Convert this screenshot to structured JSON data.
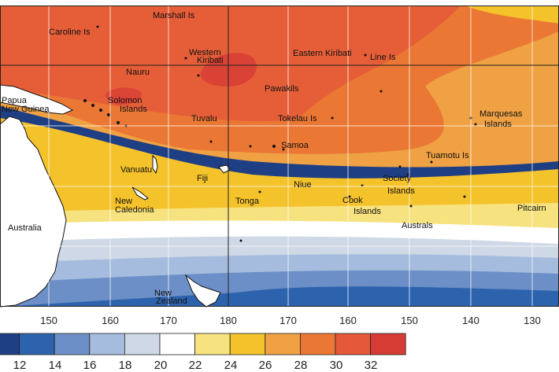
{
  "places": {
    "marshall": "Marshall Is",
    "caroline": "Caroline Is",
    "western": "Western",
    "kiribati": "Kiribati",
    "eastern_kiribati": "Eastern Kiribati",
    "line": "Line Is",
    "nauru": "Nauru",
    "papua": "Papua",
    "new_guinea": "New Guinea",
    "solomon": "Solomon",
    "islands_solomon": "Islands",
    "phoenix": "Pawakils",
    "tuvalu": "Tuvalu",
    "tokelau": "Tokelau Is",
    "marquesas": "Marquesas",
    "islands_marquesas": "Islands",
    "samoa": "Samoa",
    "tuamotu": "Tuamotu Is",
    "vanuatu": "Vanuatu",
    "fiji": "Fiji",
    "niue": "Niue",
    "society": "Society",
    "islands_society": "Islands",
    "new": "New",
    "caledonia": "Caledonia",
    "tonga": "Tonga",
    "cook": "Cook",
    "islands_cook": "Islands",
    "pitcairn": "Pitcairn",
    "australs": "Australs",
    "australia": "Australia",
    "new_z": "New",
    "zealand": "Zealand"
  },
  "axis": {
    "longitudes": [
      "150",
      "160",
      "170",
      "180",
      "170",
      "160",
      "150",
      "140",
      "130"
    ]
  },
  "colorbar": {
    "labels": [
      "12",
      "14",
      "16",
      "18",
      "20",
      "22",
      "24",
      "26",
      "28",
      "30",
      "32"
    ],
    "colors": [
      "#1f3f85",
      "#2d63ad",
      "#6b8fc6",
      "#a6bcde",
      "#cfd8e6",
      "#ffffff",
      "#f6e27e",
      "#f4c22b",
      "#efa144",
      "#ea7733",
      "#e5593a",
      "#d63b34"
    ]
  },
  "colors": {
    "hot": "#e5593a",
    "warm": "#ea7733",
    "land": "#ffffff"
  }
}
